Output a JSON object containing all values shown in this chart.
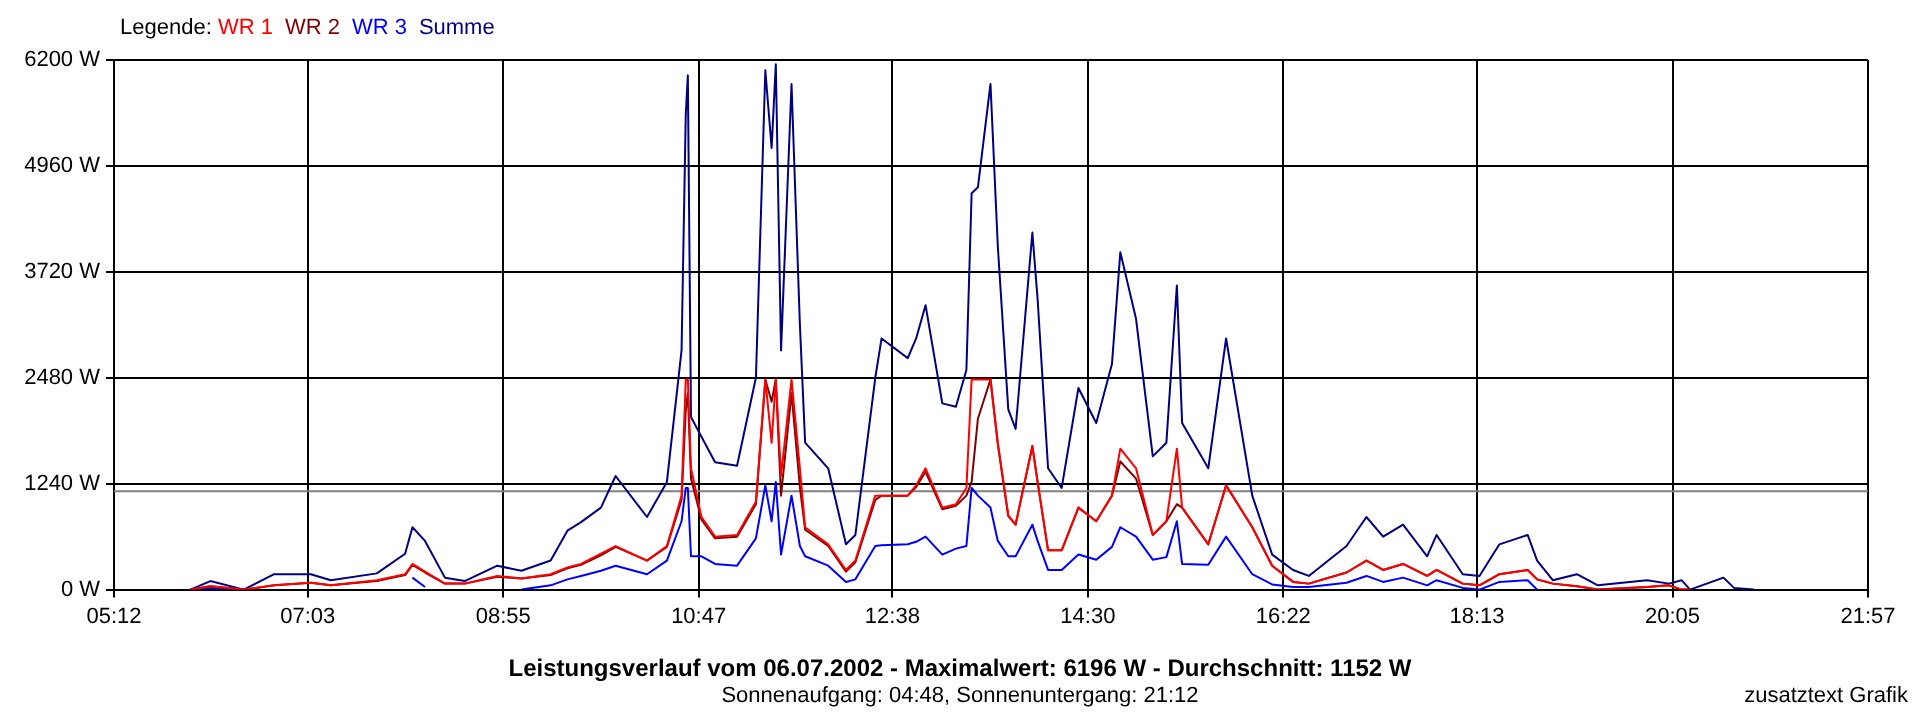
{
  "chart_data": {
    "type": "line",
    "title": "Leistungsverlauf vom 06.07.2002 - Maximalwert: 6196 W - Durchschnitt: 1152 W",
    "subtitle": "Sonnenaufgang: 04:48, Sonnenuntergang: 21:12",
    "legend_title": "Legende:",
    "annotations": [
      "zusatztext Grafik"
    ],
    "x": [
      5.93,
      6.12,
      6.44,
      6.73,
      7.08,
      7.27,
      7.71,
      7.98,
      8.05,
      8.17,
      8.36,
      8.55,
      8.86,
      9.09,
      9.37,
      9.53,
      9.66,
      9.85,
      9.99,
      10.29,
      10.48,
      10.62,
      10.66,
      10.68,
      10.71,
      10.81,
      10.94,
      11.15,
      11.33,
      11.42,
      11.48,
      11.52,
      11.57,
      11.67,
      11.75,
      11.8,
      12.02,
      12.19,
      12.28,
      12.47,
      12.53,
      12.78,
      12.86,
      12.95,
      13.11,
      13.24,
      13.34,
      13.39,
      13.45,
      13.57,
      13.64,
      13.74,
      13.81,
      13.97,
      14.02,
      14.12,
      14.25,
      14.41,
      14.58,
      14.73,
      14.81,
      14.96,
      15.12,
      15.25,
      15.35,
      15.4,
      15.65,
      15.82,
      16.07,
      16.26,
      16.46,
      16.61,
      16.97,
      17.16,
      17.32,
      17.51,
      17.74,
      17.83,
      18.08,
      18.24,
      18.43,
      18.7,
      18.79,
      18.94,
      19.17,
      19.37,
      19.84,
      20.05,
      20.17,
      20.25,
      20.57,
      20.67,
      20.86
    ],
    "series": [
      {
        "name": "WR 1",
        "color": "#ff0000",
        "values": [
          0,
          40,
          0,
          50,
          80,
          50,
          110,
          180,
          300,
          210,
          70,
          70,
          160,
          130,
          180,
          260,
          300,
          420,
          510,
          340,
          510,
          1100,
          2460,
          2460,
          1420,
          850,
          620,
          640,
          1030,
          2460,
          1720,
          2460,
          1330,
          2460,
          1420,
          730,
          530,
          230,
          340,
          1100,
          1100,
          1100,
          1220,
          1420,
          960,
          1000,
          1190,
          2460,
          2460,
          2460,
          1720,
          870,
          760,
          1680,
          1260,
          460,
          460,
          960,
          800,
          1100,
          1650,
          1420,
          640,
          800,
          1650,
          960,
          530,
          1220,
          730,
          280,
          90,
          70,
          200,
          340,
          230,
          300,
          160,
          230,
          70,
          50,
          180,
          230,
          120,
          70,
          40,
          0,
          30,
          50,
          0,
          0,
          null,
          null,
          null
        ]
      },
      {
        "name": "WR 2",
        "color": "#800000",
        "values": [
          0,
          40,
          0,
          50,
          80,
          50,
          100,
          170,
          290,
          200,
          70,
          70,
          150,
          130,
          170,
          250,
          290,
          400,
          500,
          340,
          500,
          1050,
          2100,
          2300,
          1300,
          820,
          600,
          620,
          1000,
          2460,
          2200,
          2460,
          1100,
          2300,
          1200,
          700,
          510,
          210,
          320,
          1050,
          1100,
          1100,
          1200,
          1380,
          940,
          980,
          1100,
          1260,
          2000,
          2460,
          1700,
          860,
          760,
          1680,
          1260,
          460,
          460,
          960,
          800,
          1100,
          1500,
          1300,
          640,
          800,
          1000,
          960,
          530,
          1220,
          730,
          280,
          90,
          70,
          200,
          340,
          230,
          300,
          160,
          230,
          70,
          50,
          180,
          230,
          120,
          70,
          40,
          0,
          30,
          50,
          0,
          0,
          null,
          null,
          null
        ]
      },
      {
        "name": "WR 3",
        "color": "#0000ff",
        "values": [
          0,
          20,
          0,
          null,
          null,
          null,
          null,
          null,
          140,
          30,
          null,
          null,
          null,
          0,
          50,
          120,
          160,
          220,
          280,
          180,
          340,
          800,
          1190,
          1190,
          390,
          390,
          300,
          280,
          600,
          1220,
          800,
          1260,
          410,
          1100,
          510,
          390,
          280,
          90,
          120,
          510,
          520,
          530,
          560,
          620,
          410,
          480,
          510,
          1190,
          1100,
          960,
          570,
          390,
          390,
          760,
          570,
          230,
          230,
          410,
          350,
          500,
          730,
          620,
          350,
          380,
          800,
          300,
          290,
          620,
          180,
          60,
          30,
          30,
          80,
          160,
          90,
          140,
          50,
          110,
          20,
          0,
          90,
          110,
          0,
          null,
          null,
          null,
          null,
          null,
          null,
          null,
          null,
          null,
          null
        ]
      },
      {
        "name": "Summe",
        "color": "#000080",
        "values": [
          0,
          100,
          0,
          180,
          180,
          110,
          190,
          420,
          730,
          570,
          140,
          100,
          280,
          220,
          340,
          690,
          790,
          960,
          1330,
          850,
          1260,
          2800,
          5560,
          6020,
          2020,
          1790,
          1490,
          1450,
          2480,
          6080,
          5170,
          6150,
          2800,
          5920,
          3100,
          1720,
          1420,
          530,
          640,
          2480,
          2940,
          2710,
          2940,
          3330,
          2180,
          2140,
          2570,
          4640,
          4710,
          5920,
          4020,
          2110,
          1880,
          4180,
          3400,
          1420,
          1190,
          2360,
          1950,
          2640,
          3950,
          3170,
          1560,
          1720,
          3560,
          1950,
          1420,
          2940,
          1100,
          410,
          230,
          160,
          510,
          850,
          620,
          760,
          390,
          640,
          180,
          160,
          530,
          640,
          340,
          110,
          180,
          50,
          110,
          70,
          110,
          0,
          140,
          20,
          0
        ]
      }
    ],
    "xlim": [
      5.2,
      21.95
    ],
    "xticks": [
      {
        "value": 5.2,
        "label": "05:12"
      },
      {
        "value": 7.05,
        "label": "07:03"
      },
      {
        "value": 8.9167,
        "label": "08:55"
      },
      {
        "value": 10.7833,
        "label": "10:47"
      },
      {
        "value": 12.6333,
        "label": "12:38"
      },
      {
        "value": 14.5,
        "label": "14:30"
      },
      {
        "value": 16.3667,
        "label": "16:22"
      },
      {
        "value": 18.2167,
        "label": "18:13"
      },
      {
        "value": 20.0833,
        "label": "20:05"
      },
      {
        "value": 21.95,
        "label": "21:57"
      }
    ],
    "ylim": [
      0,
      6200
    ],
    "yticks": [
      {
        "value": 0,
        "label": "0 W"
      },
      {
        "value": 1240,
        "label": "1240 W"
      },
      {
        "value": 2480,
        "label": "2480 W"
      },
      {
        "value": 3720,
        "label": "3720 W"
      },
      {
        "value": 4960,
        "label": "4960 W"
      },
      {
        "value": 6200,
        "label": "6200 W"
      }
    ],
    "ref_lines": [
      {
        "axis": "y",
        "value": 1152,
        "color": "#808080"
      }
    ],
    "grid": true,
    "legend": "top left",
    "marker": "none",
    "line_style": "solid"
  }
}
